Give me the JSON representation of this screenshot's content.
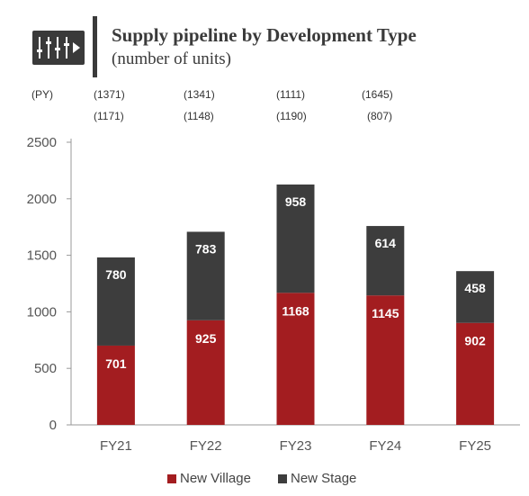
{
  "header": {
    "title": "Supply pipeline by Development Type",
    "subtitle": "(number of units)",
    "icon": "sliders-play-icon"
  },
  "py_label": "(PY)",
  "py_values": {
    "row1": [
      "(1371)",
      "(1341)",
      "(1111)",
      "(1645)"
    ],
    "row2": [
      "(1171)",
      "(1148)",
      "(1190)",
      "(807)"
    ]
  },
  "colors": {
    "new_village": "#a31d20",
    "new_stage": "#3d3d3d",
    "axis": "#999999"
  },
  "chart_data": {
    "type": "bar",
    "stacked": true,
    "categories": [
      "FY21",
      "FY22",
      "FY23",
      "FY24",
      "FY25"
    ],
    "series": [
      {
        "name": "New Village",
        "values": [
          701,
          925,
          1168,
          1145,
          902
        ]
      },
      {
        "name": "New Stage",
        "values": [
          780,
          783,
          958,
          614,
          458
        ]
      }
    ],
    "ylim": [
      0,
      2500
    ],
    "yticks": [
      0,
      500,
      1000,
      1500,
      2000,
      2500
    ],
    "xlabel": "",
    "ylabel": "",
    "grid": false,
    "legend_position": "bottom"
  }
}
